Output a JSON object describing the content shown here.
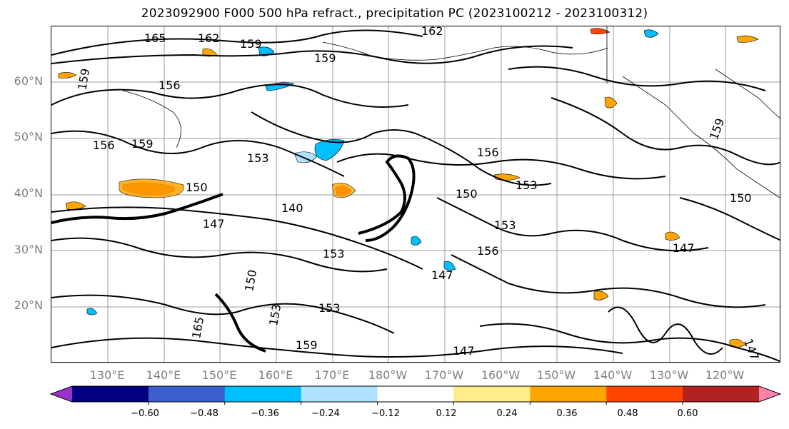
{
  "title": "2023092900 F000 500 hPa refract., precipitation PC (2023100212 - 2023100312)",
  "lat_labels": [
    "60°N",
    "50°N",
    "40°N",
    "30°N",
    "20°N"
  ],
  "lon_labels": [
    "130°E",
    "140°E",
    "150°E",
    "160°E",
    "170°E",
    "180°W",
    "170°W",
    "160°W",
    "150°W",
    "140°W",
    "130°W",
    "120°W"
  ],
  "contour_labels": [
    "165",
    "162",
    "159",
    "162",
    "159",
    "159",
    "156",
    "156",
    "159",
    "153",
    "150",
    "147",
    "140",
    "153",
    "150",
    "147",
    "153",
    "156",
    "156",
    "153",
    "150",
    "147",
    "147",
    "153",
    "153",
    "159",
    "165",
    "147",
    "159",
    "150"
  ],
  "colorbar": {
    "colors": [
      "#9932cc",
      "#000080",
      "#3a5fcd",
      "#00bfff",
      "#b0e2ff",
      "#ffffff",
      "#ffec8b",
      "#ffa500",
      "#ff4500",
      "#b22222",
      "#ff82ab"
    ],
    "tick_labels": [
      "−0.60",
      "−0.48",
      "−0.36",
      "−0.24",
      "−0.12",
      "0.12",
      "0.24",
      "0.36",
      "0.48",
      "0.60"
    ]
  }
}
